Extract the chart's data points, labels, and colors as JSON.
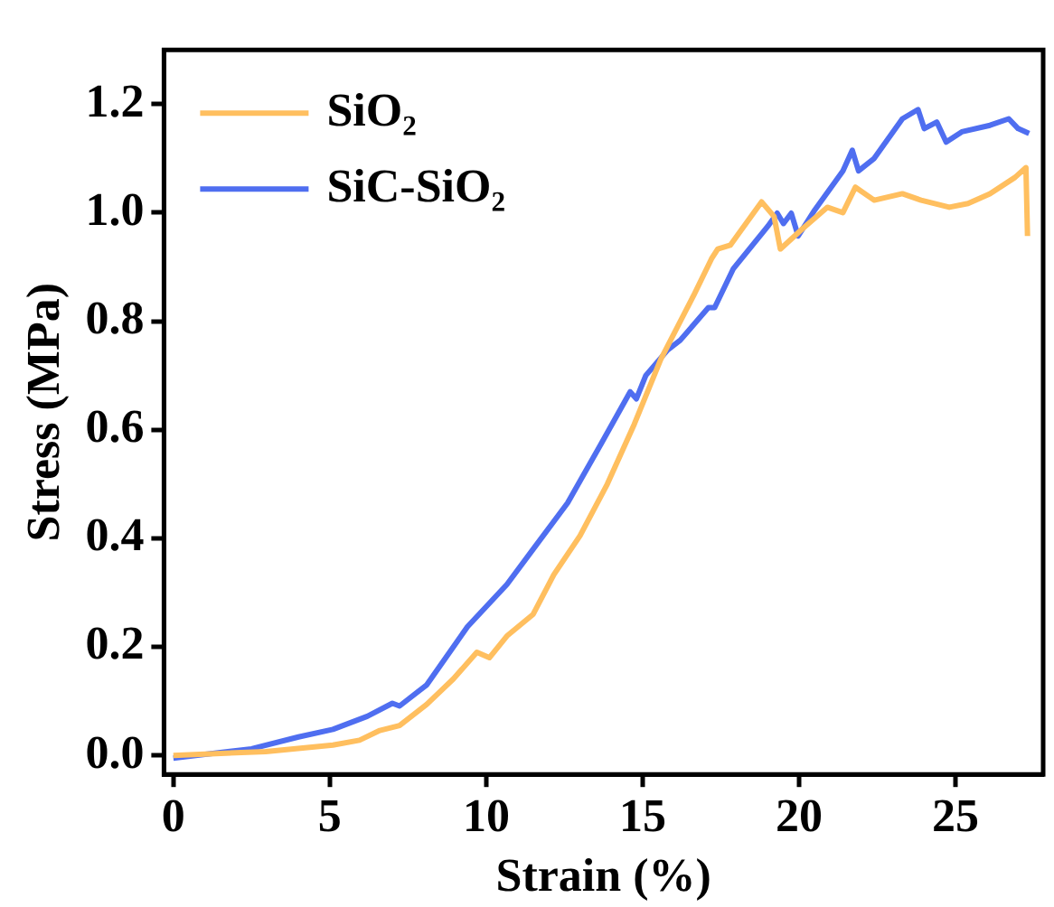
{
  "chart_data": {
    "type": "line",
    "xlabel": "Strain (%)",
    "ylabel": "Stress (MPa)",
    "xlim": [
      -0.3,
      27.8
    ],
    "ylim": [
      -0.035,
      1.3
    ],
    "xticks": [
      0,
      5,
      10,
      15,
      20,
      25
    ],
    "yticks": [
      {
        "value": 0,
        "label": "0.0"
      },
      {
        "value": 0.2,
        "label": "0.2"
      },
      {
        "value": 0.4,
        "label": "0.4"
      },
      {
        "value": 0.6,
        "label": "0.6"
      },
      {
        "value": 0.8,
        "label": "0.8"
      },
      {
        "value": 1,
        "label": "1.0"
      },
      {
        "value": 1.2,
        "label": "1.2"
      }
    ],
    "grid": false,
    "legend": "top left",
    "marker": "none",
    "line_style": "solid",
    "series": [
      {
        "name": "SiO₂",
        "color": "#ffbf5f",
        "x": [
          0,
          2.95,
          5.1,
          5.95,
          6.6,
          7.23,
          8.1,
          8.95,
          9.7,
          10.1,
          10.66,
          11.5,
          12.16,
          13.0,
          13.87,
          14.73,
          15.58,
          16.65,
          17.2,
          17.4,
          17.8,
          18.8,
          19.2,
          19.4,
          20.1,
          20.9,
          21.4,
          21.8,
          22.4,
          23.3,
          23.9,
          24.8,
          25.4,
          26.1,
          26.9,
          27.25,
          27.3
        ],
        "values": [
          0,
          0.007,
          0.019,
          0.028,
          0.046,
          0.055,
          0.094,
          0.141,
          0.19,
          0.18,
          0.22,
          0.26,
          0.333,
          0.405,
          0.5,
          0.61,
          0.73,
          0.85,
          0.915,
          0.933,
          0.94,
          1.02,
          0.993,
          0.933,
          0.97,
          1.01,
          1.0,
          1.047,
          1.023,
          1.035,
          1.023,
          1.01,
          1.017,
          1.035,
          1.065,
          1.083,
          0.957
        ]
      },
      {
        "name": "SiC-SiO₂",
        "color": "#4f6ef0",
        "x": [
          0,
          2.5,
          4.0,
          5.1,
          6.2,
          7.0,
          7.23,
          8.1,
          9.4,
          10.66,
          11.5,
          12.6,
          13.66,
          14.6,
          14.8,
          15.1,
          15.8,
          16.2,
          17.1,
          17.3,
          17.9,
          19.0,
          19.3,
          19.5,
          19.75,
          19.97,
          20.5,
          21.4,
          21.7,
          21.9,
          22.4,
          23.3,
          23.8,
          24.0,
          24.4,
          24.7,
          25.2,
          26.1,
          26.7,
          27.0,
          27.35
        ],
        "values": [
          -0.005,
          0.012,
          0.034,
          0.048,
          0.072,
          0.096,
          0.091,
          0.13,
          0.237,
          0.315,
          0.38,
          0.465,
          0.573,
          0.67,
          0.657,
          0.7,
          0.747,
          0.765,
          0.825,
          0.825,
          0.897,
          0.975,
          0.999,
          0.98,
          0.999,
          0.957,
          1.005,
          1.077,
          1.115,
          1.077,
          1.1,
          1.173,
          1.19,
          1.155,
          1.167,
          1.13,
          1.149,
          1.161,
          1.173,
          1.155,
          1.146
        ]
      }
    ]
  }
}
